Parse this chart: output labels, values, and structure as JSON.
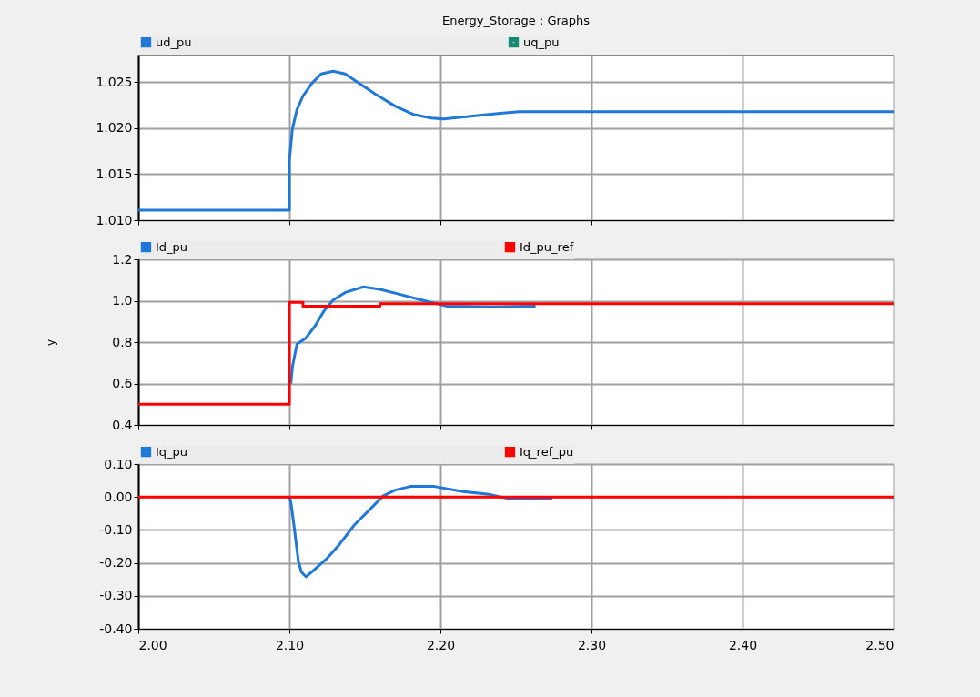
{
  "chart_data": [
    {
      "type": "line",
      "title": "Energy_Storage : Graphs",
      "xlim": [
        2.0,
        2.5
      ],
      "ylim": [
        1.01,
        1.028
      ],
      "xticks": [
        2.0,
        2.1,
        2.2,
        2.3,
        2.4,
        2.5
      ],
      "yticks": [
        {
          "value": 1.01,
          "label": "1.010"
        },
        1.015,
        {
          "value": 1.02,
          "label": "1.020"
        },
        1.025
      ],
      "grid": true,
      "legend": "top",
      "tick_labels": "y",
      "series": [
        {
          "name": "ud_pu",
          "color": "#1f78d8",
          "x": [
            2.0,
            2.1,
            2.1,
            2.102,
            2.105,
            2.109,
            2.115,
            2.121,
            2.129,
            2.137,
            2.145,
            2.157,
            2.17,
            2.182,
            2.194,
            2.202,
            2.22,
            2.238,
            2.252,
            2.5
          ],
          "values": [
            1.0111,
            1.0111,
            1.0165,
            1.0199,
            1.022,
            1.0235,
            1.0249,
            1.0259,
            1.0262,
            1.0259,
            1.025,
            1.0237,
            1.0224,
            1.0215,
            1.0211,
            1.021,
            1.0213,
            1.0216,
            1.0218,
            1.0218
          ]
        },
        {
          "name": "uq_pu",
          "color": "#178a74"
        }
      ]
    },
    {
      "type": "line",
      "ylabel": "y",
      "xlim": [
        2.0,
        2.5
      ],
      "ylim": [
        0.4,
        1.2
      ],
      "xticks": [
        2.0,
        2.1,
        2.2,
        2.3,
        2.4,
        2.5
      ],
      "yticks": [
        0.4,
        0.6,
        0.8,
        {
          "value": 1.0,
          "label": "1.0"
        },
        1.2
      ],
      "grid": true,
      "legend": "top",
      "tick_labels": "y",
      "series": [
        {
          "name": "Id_pu",
          "color": "#1f78d8",
          "x": [
            2.101,
            2.102,
            2.105,
            2.111,
            2.117,
            2.123,
            2.129,
            2.137,
            2.149,
            2.16,
            2.174,
            2.19,
            2.204,
            2.234,
            2.263
          ],
          "values": [
            0.6,
            0.68,
            0.79,
            0.82,
            0.878,
            0.952,
            1.003,
            1.04,
            1.067,
            1.055,
            1.029,
            0.999,
            0.974,
            0.97,
            0.974
          ]
        },
        {
          "name": "Id_pu_ref",
          "color": "#ff0000",
          "x": [
            2.0,
            2.1,
            2.1,
            2.109,
            2.109,
            2.16,
            2.16,
            2.5
          ],
          "values": [
            0.5,
            0.5,
            0.992,
            0.992,
            0.974,
            0.974,
            0.986,
            0.986
          ]
        }
      ]
    },
    {
      "type": "line",
      "xlim": [
        2.0,
        2.5
      ],
      "ylim": [
        -0.4,
        0.1
      ],
      "xticks": [
        {
          "value": 2.0,
          "label": "2.00"
        },
        {
          "value": 2.1,
          "label": "2.10"
        },
        {
          "value": 2.2,
          "label": "2.20"
        },
        {
          "value": 2.3,
          "label": "2.30"
        },
        {
          "value": 2.4,
          "label": "2.40"
        },
        {
          "value": 2.5,
          "label": "2.50"
        }
      ],
      "yticks": [
        {
          "value": -0.4,
          "label": "-0.40"
        },
        {
          "value": -0.3,
          "label": "-0.30"
        },
        {
          "value": -0.2,
          "label": "-0.20"
        },
        {
          "value": -0.1,
          "label": "-0.10"
        },
        {
          "value": 0,
          "label": "0.00"
        },
        {
          "value": 0.1,
          "label": "0.10"
        }
      ],
      "grid": true,
      "legend": "top",
      "series": [
        {
          "name": "Iq_pu",
          "color": "#1f78d8",
          "x": [
            2.1,
            2.101,
            2.103,
            2.106,
            2.108,
            2.111,
            2.117,
            2.125,
            2.133,
            2.143,
            2.153,
            2.162,
            2.17,
            2.18,
            2.196,
            2.214,
            2.232,
            2.246,
            2.274
          ],
          "values": [
            0,
            -0.016,
            -0.085,
            -0.196,
            -0.228,
            -0.242,
            -0.219,
            -0.186,
            -0.145,
            -0.085,
            -0.039,
            0.003,
            0.021,
            0.032,
            0.032,
            0.017,
            0.008,
            -0.006,
            -0.006
          ]
        },
        {
          "name": "Iq_ref_pu",
          "color": "#ff0000",
          "x": [
            2.0,
            2.5
          ],
          "values": [
            0,
            0
          ]
        }
      ]
    }
  ]
}
